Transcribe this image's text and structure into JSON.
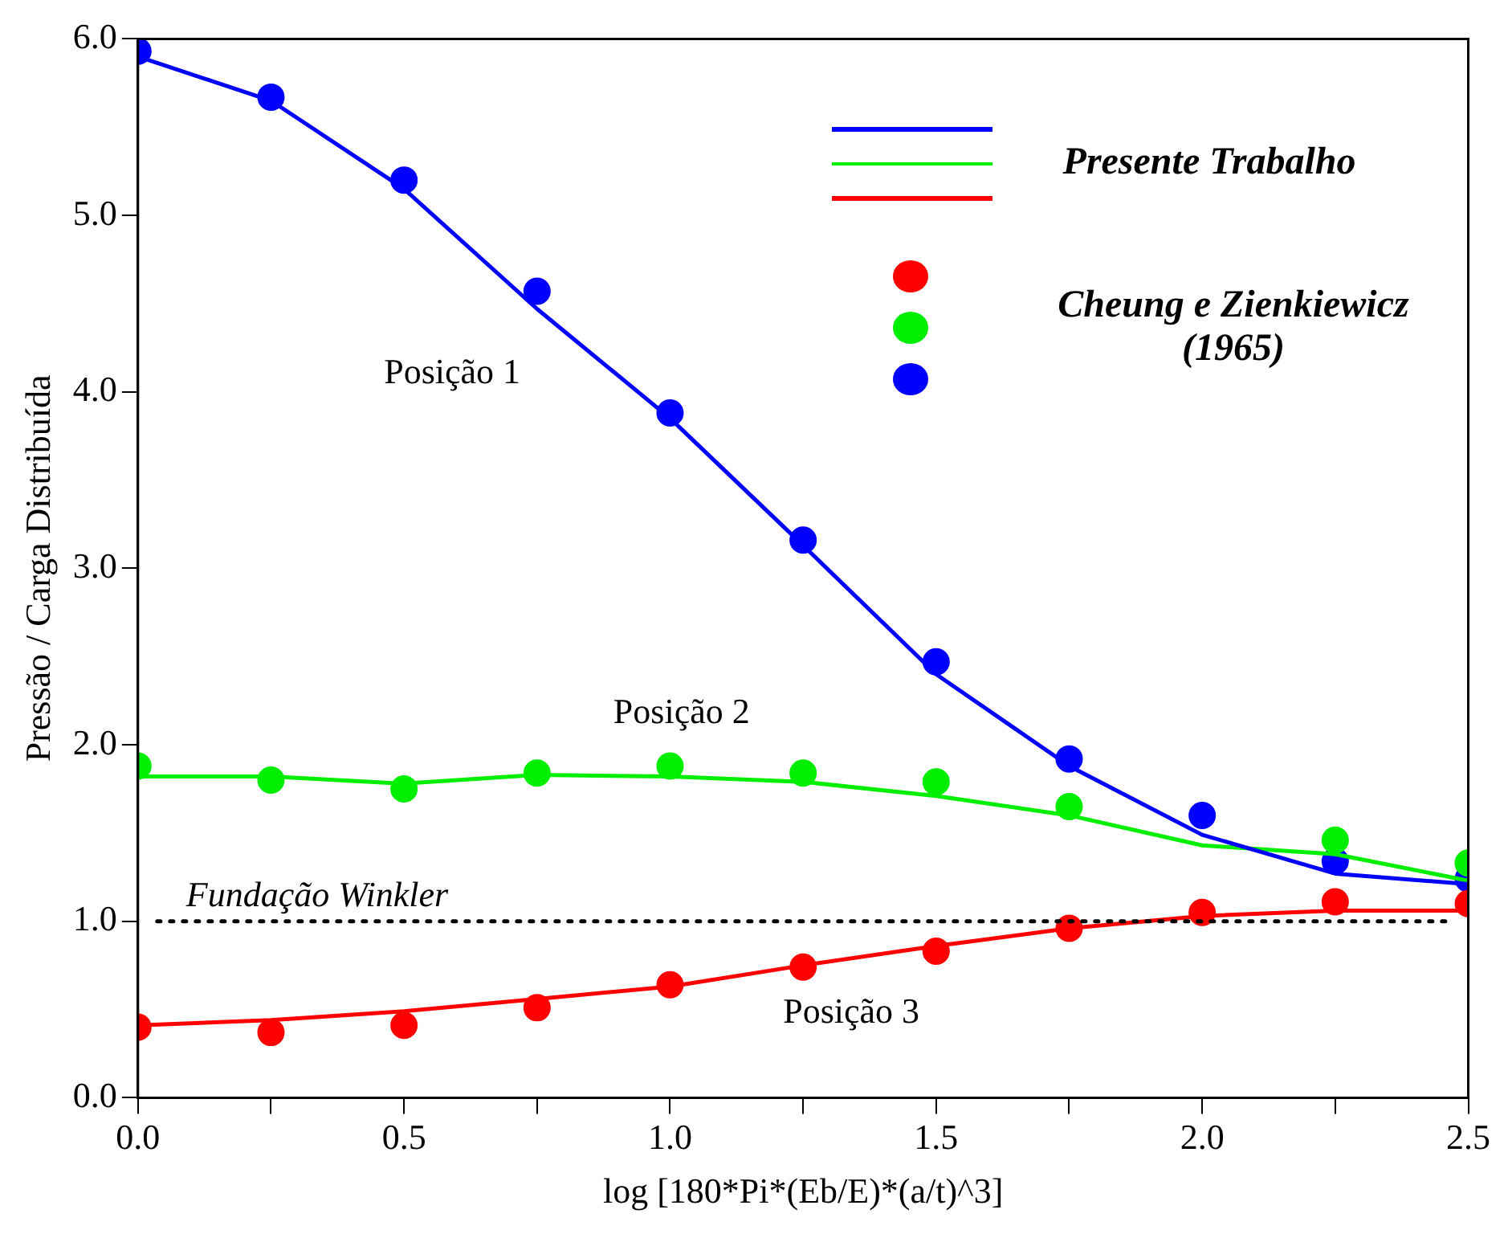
{
  "chart_data": {
    "type": "line",
    "xlabel": "log [180*Pi*(Eb/E)*(a/t)^3]",
    "ylabel": "Pressão / Carga Distribuída",
    "x": [
      0,
      0.25,
      0.5,
      0.75,
      1.0,
      1.25,
      1.5,
      1.75,
      2.0,
      2.25,
      2.5
    ],
    "xlim": [
      0,
      2.5
    ],
    "xticks": [
      {
        "value": 0,
        "label": "0.0"
      },
      {
        "value": 0.25,
        "label": null
      },
      {
        "value": 0.5,
        "label": "0.5"
      },
      {
        "value": 0.75,
        "label": null
      },
      {
        "value": 1.0,
        "label": "1.0"
      },
      {
        "value": 1.25,
        "label": null
      },
      {
        "value": 1.5,
        "label": "1.5"
      },
      {
        "value": 1.75,
        "label": null
      },
      {
        "value": 2.0,
        "label": "2.0"
      },
      {
        "value": 2.25,
        "label": null
      },
      {
        "value": 2.5,
        "label": "2.5"
      }
    ],
    "ylim": [
      0,
      6
    ],
    "yticks": [
      {
        "value": 0,
        "label": "0.0"
      },
      {
        "value": 1,
        "label": "1.0"
      },
      {
        "value": 2,
        "label": "2.0"
      },
      {
        "value": 3,
        "label": "3.0"
      },
      {
        "value": 4,
        "label": "4.0"
      },
      {
        "value": 5,
        "label": "5.0"
      },
      {
        "value": 6,
        "label": "6.0"
      }
    ],
    "grid": false,
    "series": [
      {
        "marker": "none",
        "color": "#0000ff",
        "values": [
          5.9,
          5.65,
          5.15,
          4.47,
          3.85,
          3.13,
          2.4,
          1.88,
          1.49,
          1.27,
          1.21
        ]
      },
      {
        "marker": "none",
        "color": "#00ee00",
        "values": [
          1.82,
          1.82,
          1.78,
          1.83,
          1.82,
          1.79,
          1.71,
          1.6,
          1.43,
          1.38,
          1.23
        ]
      },
      {
        "marker": "none",
        "color": "#ff0000",
        "values": [
          0.41,
          0.44,
          0.49,
          0.56,
          0.63,
          0.75,
          0.86,
          0.96,
          1.03,
          1.06,
          1.06
        ]
      },
      {
        "type": "scatter",
        "marker": "circle",
        "color": "#ff0000",
        "values": [
          0.4,
          0.37,
          0.41,
          0.51,
          0.64,
          0.74,
          0.83,
          0.96,
          1.05,
          1.11,
          1.1
        ]
      },
      {
        "type": "scatter",
        "marker": "circle",
        "color": "#00ee00",
        "values": [
          1.88,
          1.8,
          1.75,
          1.84,
          1.88,
          1.84,
          1.79,
          1.65,
          null,
          1.46,
          1.33
        ]
      },
      {
        "type": "scatter",
        "marker": "circle",
        "color": "#0000ff",
        "values": [
          5.93,
          5.67,
          5.2,
          4.57,
          3.88,
          3.16,
          2.47,
          1.92,
          1.6,
          1.34,
          1.24
        ]
      }
    ],
    "ref_lines": [
      {
        "axis": "y",
        "value": 1.0,
        "label": "Fundação Winkler",
        "line_style": "dotted",
        "color": "#000000"
      }
    ],
    "annotations": [
      "Posição 1",
      "Posição 2",
      "Posição 3",
      "Presente Trabalho",
      "Cheung e Zienkiewicz (1965)"
    ]
  }
}
